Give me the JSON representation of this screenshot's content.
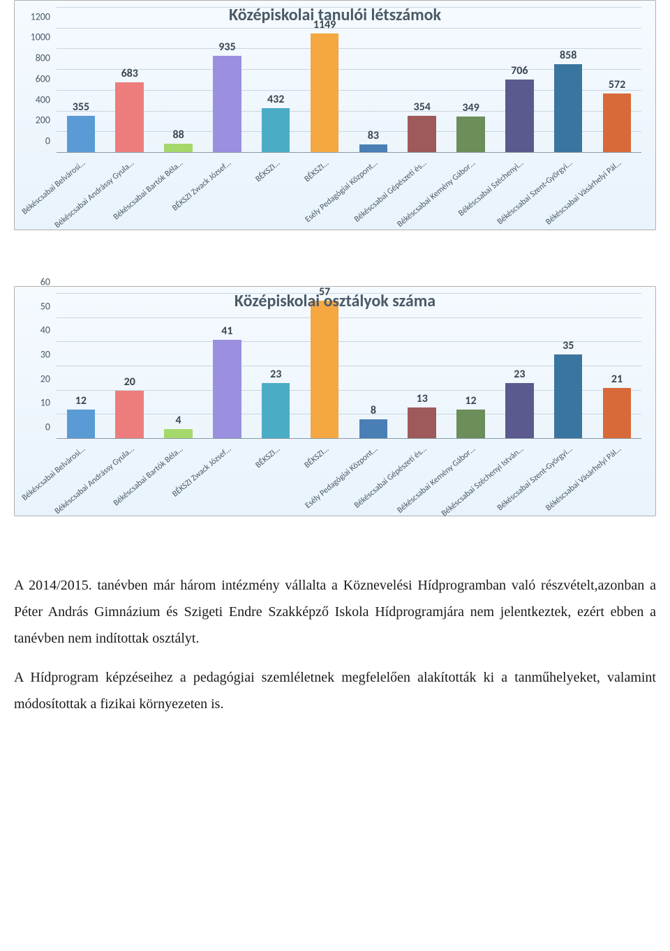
{
  "chart1": {
    "title": "Középiskolai tanulói létszámok",
    "type": "bar",
    "ymax": 1400,
    "ytick_step": 200,
    "categories": [
      "Békéscsabai Belvárosi…",
      "Békéscsabai Andrássy Gyula…",
      "Békéscsabai Bartók Béla…",
      "BÉKSZI Zwack József…",
      "BÉKSZI…",
      "BÉKSZI…",
      "Esély Pedagógiai Központ…",
      "Békéscsabai Gépészeti és…",
      "Békéscsabai Kemény Gábor…",
      "Békéscsabai Széchenyi…",
      "Békéscsabai Szent-Györgyi…",
      "Békéscsabai Vásárhelyi Pál…"
    ],
    "values": [
      355,
      683,
      88,
      935,
      432,
      1149,
      83,
      354,
      349,
      706,
      858,
      572
    ],
    "colors": [
      "#5b9bd5",
      "#ed7d7d",
      "#a5d86a",
      "#9b8fe0",
      "#4bacc6",
      "#f5a742",
      "#4a7fb5",
      "#9e5a5a",
      "#6b8e5a",
      "#5a5a8e",
      "#3a75a0",
      "#d86a3a"
    ],
    "background": "linear-gradient(#f5faff,#e9f3fb)",
    "grid_color": "#c9d6e0",
    "title_fontsize": 24,
    "label_fontsize": 14
  },
  "chart2": {
    "title": "Középiskolai osztályok száma",
    "type": "bar",
    "ymax": 60,
    "ytick_step": 10,
    "categories": [
      "Békéscsabai Belvárosi…",
      "Békéscsabai Andrássy Gyula…",
      "Békéscsabai Bartók Béla…",
      "BÉKSZI Zwack József…",
      "BÉKSZI…",
      "BÉKSZI…",
      "Esély Pedagógiai Központ…",
      "Békéscsabai Gépészeti és…",
      "Békéscsabai Kemény Gábor…",
      "Békéscsabai Széchenyi István…",
      "Békéscsabai Szent-Györgyi…",
      "Békéscsabai Vásárhelyi Pál…"
    ],
    "values": [
      12,
      20,
      4,
      41,
      23,
      57,
      8,
      13,
      12,
      23,
      35,
      21
    ],
    "colors": [
      "#5b9bd5",
      "#ed7d7d",
      "#a5d86a",
      "#9b8fe0",
      "#4bacc6",
      "#f5a742",
      "#4a7fb5",
      "#9e5a5a",
      "#6b8e5a",
      "#5a5a8e",
      "#3a75a0",
      "#d86a3a"
    ],
    "background": "linear-gradient(#f5faff,#e9f3fb)",
    "grid_color": "#c9d6e0",
    "title_fontsize": 24,
    "label_fontsize": 14
  },
  "paragraphs": [
    "A 2014/2015. tanévben már három intézmény vállalta a Köznevelési Hídprogramban való részvételt,azonban a Péter András Gimnázium és Szigeti Endre Szakképző Iskola Hídprogramjára nem jelentkeztek, ezért ebben a tanévben nem indítottak osztályt.",
    "A Hídprogram képzéseihez a pedagógiai szemléletnek megfelelően alakították ki a tanműhelyeket, valamint módosítottak a fizikai környezeten is."
  ]
}
